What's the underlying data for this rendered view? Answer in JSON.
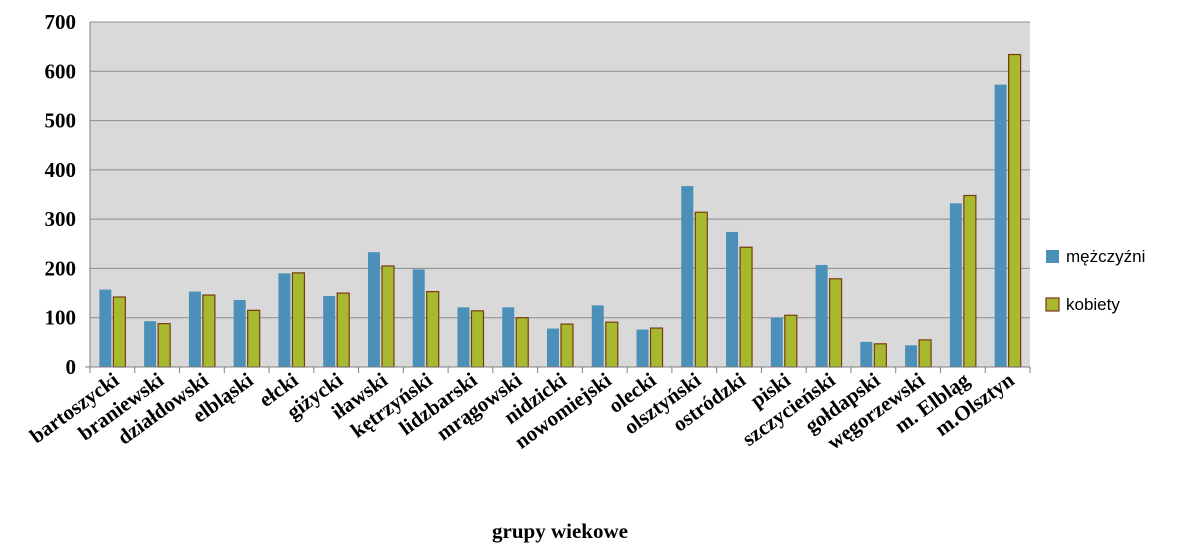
{
  "chart_data": {
    "type": "bar",
    "title": "",
    "xlabel": "grupy wiekowe",
    "ylabel": "",
    "ylim": [
      0,
      700
    ],
    "yticks": [
      0,
      100,
      200,
      300,
      400,
      500,
      600,
      700
    ],
    "grid": true,
    "legend_position": "right",
    "categories": [
      "bartoszycki",
      "braniewski",
      "działdowski",
      "elbląski",
      "ełcki",
      "giżycki",
      "iławski",
      "kętrzyński",
      "lidzbarski",
      "mrągowski",
      "nidzicki",
      "nowomiejski",
      "olecki",
      "olsztyński",
      "ostródzki",
      "piski",
      "szczycieński",
      "gołdapski",
      "węgorzewski",
      "m. Elbląg",
      "m.Olsztyn"
    ],
    "series": [
      {
        "name": "mężczyźni",
        "color": "#4a90b8",
        "values": [
          157,
          93,
          153,
          136,
          190,
          144,
          233,
          198,
          121,
          121,
          78,
          125,
          76,
          367,
          274,
          100,
          207,
          51,
          44,
          332,
          573
        ]
      },
      {
        "name": "kobiety",
        "color": "#a7b92e",
        "values": [
          142,
          88,
          146,
          115,
          191,
          150,
          205,
          153,
          114,
          100,
          87,
          91,
          79,
          314,
          243,
          105,
          179,
          47,
          55,
          348,
          634
        ]
      }
    ]
  },
  "colors": {
    "plot_background": "#d9d9d9",
    "gridline": "#8c8c8c",
    "bar_outline_kobiety": "#7a3a10"
  }
}
